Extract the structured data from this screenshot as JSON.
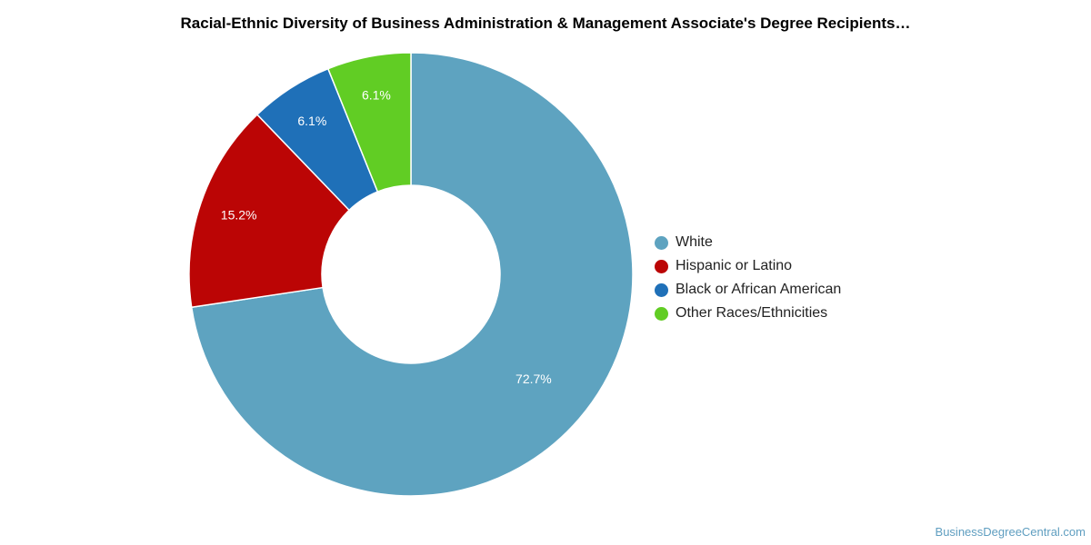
{
  "chart_data": {
    "type": "pie",
    "title": "Racial-Ethnic Diversity of Business Administration & Management Associate's Degree Recipients…",
    "donut": true,
    "categories": [
      "White",
      "Hispanic or Latino",
      "Black or African American",
      "Other Races/Ethnicities"
    ],
    "values": [
      72.7,
      15.2,
      6.1,
      6.1
    ],
    "labels": [
      "72.7%",
      "15.2%",
      "6.1%",
      "6.1%"
    ],
    "colors": [
      "#5ea3c0",
      "#bb0505",
      "#1f70b8",
      "#61cd24"
    ],
    "legend_position": "right"
  },
  "watermark": "BusinessDegreeCentral.com"
}
